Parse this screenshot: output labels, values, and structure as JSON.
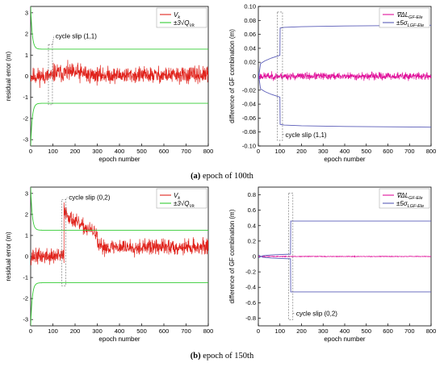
{
  "captions": [
    {
      "letter": "(a)",
      "text": " epoch of 100th"
    },
    {
      "letter": "(b)",
      "text": " epoch of 150th"
    }
  ],
  "colors": {
    "red": "#e0221b",
    "green": "#33cc33",
    "magenta": "#e0109a",
    "blue": "#5a5cb8",
    "dash": "#666666"
  },
  "chart_data": [
    {
      "id": "a_left",
      "type": "line",
      "xlabel": "epoch number",
      "ylabel": "residual error (m)",
      "xlim": [
        0,
        800
      ],
      "ylim": [
        -3.3,
        3.3
      ],
      "xticks": [
        0,
        100,
        200,
        300,
        400,
        500,
        600,
        700,
        800
      ],
      "yticks": [
        -3,
        -2,
        -1,
        0,
        1,
        2,
        3
      ],
      "legend": {
        "position": "top-right",
        "entries": [
          {
            "label": "V_k",
            "color": "#e0221b"
          },
          {
            "label": "±3√Q_Vk",
            "color": "#33cc33"
          }
        ]
      },
      "series": [
        {
          "name": "V_k",
          "kind": "noise",
          "color": "#e0221b",
          "seed": 11,
          "segments": [
            {
              "x0": 1,
              "x1": 100,
              "base": 0.0,
              "amp": 0.35
            },
            {
              "x0": 100,
              "x1": 250,
              "base": 0.15,
              "amp": 0.38
            },
            {
              "x0": 250,
              "x1": 800,
              "base": 0.05,
              "amp": 0.33
            }
          ]
        },
        {
          "name": "+3√Q_Vk",
          "kind": "envelope",
          "color": "#33cc33",
          "start": 3.3,
          "end": 1.28,
          "decay": 7
        },
        {
          "name": "-3√Q_Vk",
          "kind": "envelope",
          "color": "#33cc33",
          "start": -3.3,
          "end": -1.28,
          "decay": 7
        }
      ],
      "annotation": {
        "text": "cycle slip (1,1)",
        "box_x": [
          80,
          98
        ],
        "box_y": [
          -1.35,
          1.5
        ],
        "label_at": {
          "x": 112,
          "y": 1.8
        }
      }
    },
    {
      "id": "a_right",
      "type": "line",
      "xlabel": "epoch number",
      "ylabel": "difference of GF combination (m)",
      "xlim": [
        0,
        800
      ],
      "ylim": [
        -0.1,
        0.1
      ],
      "xticks": [
        0,
        100,
        200,
        300,
        400,
        500,
        600,
        700,
        800
      ],
      "yticks": [
        -0.1,
        -0.08,
        -0.06,
        -0.04,
        -0.02,
        0,
        0.02,
        0.04,
        0.06,
        0.08,
        0.1
      ],
      "legend": {
        "position": "top-right",
        "entries": [
          {
            "label": "∇ΔL_GF-Ele",
            "color": "#e0109a"
          },
          {
            "label": "±5σ_LGF-Ele",
            "color": "#5a5cb8"
          }
        ]
      },
      "series": [
        {
          "name": "∇ΔL_GF-Ele",
          "kind": "noise",
          "color": "#e0109a",
          "seed": 23,
          "segments": [
            {
              "x0": 1,
              "x1": 800,
              "base": 0.0,
              "amp": 0.0045
            }
          ]
        },
        {
          "name": "+5σ",
          "kind": "points",
          "color": "#5a5cb8",
          "x": [
            0,
            10,
            30,
            60,
            90,
            100,
            101,
            120,
            200,
            400,
            800
          ],
          "y": [
            -0.005,
            0.018,
            0.022,
            0.026,
            0.029,
            0.03,
            0.069,
            0.07,
            0.071,
            0.072,
            0.073
          ]
        },
        {
          "name": "-5σ",
          "kind": "points",
          "color": "#5a5cb8",
          "x": [
            0,
            10,
            30,
            60,
            90,
            100,
            101,
            120,
            200,
            400,
            800
          ],
          "y": [
            0.005,
            -0.018,
            -0.022,
            -0.026,
            -0.029,
            -0.03,
            -0.069,
            -0.07,
            -0.071,
            -0.072,
            -0.073
          ]
        }
      ],
      "annotation": {
        "text": "cycle slip (1,1)",
        "box_x": [
          88,
          112
        ],
        "box_y": [
          -0.092,
          0.092
        ],
        "label_at": {
          "x": 125,
          "y": -0.087
        }
      }
    },
    {
      "id": "b_left",
      "type": "line",
      "xlabel": "epoch number",
      "ylabel": "residual error (m)",
      "xlim": [
        0,
        800
      ],
      "ylim": [
        -3.3,
        3.3
      ],
      "xticks": [
        0,
        100,
        200,
        300,
        400,
        500,
        600,
        700,
        800
      ],
      "yticks": [
        -3,
        -2,
        -1,
        0,
        1,
        2,
        3
      ],
      "legend": {
        "position": "top-right",
        "entries": [
          {
            "label": "V_k",
            "color": "#e0221b"
          },
          {
            "label": "±3√Q_Vk",
            "color": "#33cc33"
          }
        ]
      },
      "series": [
        {
          "name": "V_k",
          "kind": "noise",
          "color": "#e0221b",
          "seed": 37,
          "segments": [
            {
              "x0": 1,
              "x1": 150,
              "base": 0.0,
              "amp": 0.32
            },
            {
              "x0": 150,
              "x1": 300,
              "base": 2.4,
              "end_base": 1.1,
              "amp": 0.3
            },
            {
              "x0": 300,
              "x1": 800,
              "base": 0.45,
              "amp": 0.32
            }
          ]
        },
        {
          "name": "+3√Q_Vk",
          "kind": "envelope",
          "color": "#33cc33",
          "start": 3.3,
          "end": 1.25,
          "decay": 7
        },
        {
          "name": "-3√Q_Vk",
          "kind": "envelope",
          "color": "#33cc33",
          "start": -3.3,
          "end": -1.25,
          "decay": 7
        }
      ],
      "annotation": {
        "text": "cycle slip (0,2)",
        "box_x": [
          140,
          158
        ],
        "box_y": [
          -1.4,
          2.7
        ],
        "label_at": {
          "x": 172,
          "y": 2.7
        }
      }
    },
    {
      "id": "b_right",
      "type": "line",
      "xlabel": "epoch number",
      "ylabel": "difference of GF combination (m)",
      "xlim": [
        0,
        800
      ],
      "ylim": [
        -0.9,
        0.9
      ],
      "xticks": [
        0,
        100,
        200,
        300,
        400,
        500,
        600,
        700,
        800
      ],
      "yticks": [
        -0.8,
        -0.6,
        -0.4,
        -0.2,
        0,
        0.2,
        0.4,
        0.6,
        0.8
      ],
      "legend": {
        "position": "top-right",
        "entries": [
          {
            "label": "∇ΔL_GF-Ele",
            "color": "#e0109a"
          },
          {
            "label": "±5σ_LGF-Ele",
            "color": "#5a5cb8"
          }
        ]
      },
      "series": [
        {
          "name": "∇ΔL_GF-Ele",
          "kind": "noise",
          "color": "#e0109a",
          "seed": 51,
          "segments": [
            {
              "x0": 1,
              "x1": 800,
              "base": 0.0,
              "amp": 0.004
            }
          ]
        },
        {
          "name": "+5σ",
          "kind": "points",
          "color": "#5a5cb8",
          "x": [
            0,
            20,
            60,
            100,
            149,
            150,
            800
          ],
          "y": [
            -0.02,
            0.01,
            0.02,
            0.025,
            0.03,
            0.46,
            0.46
          ]
        },
        {
          "name": "-5σ",
          "kind": "points",
          "color": "#5a5cb8",
          "x": [
            0,
            20,
            60,
            100,
            149,
            150,
            800
          ],
          "y": [
            0.02,
            -0.01,
            -0.02,
            -0.025,
            -0.03,
            -0.46,
            -0.46
          ]
        }
      ],
      "annotation": {
        "text": "cycle slip (0,2)",
        "box_x": [
          140,
          160
        ],
        "box_y": [
          -0.82,
          0.82
        ],
        "label_at": {
          "x": 175,
          "y": -0.77
        }
      }
    }
  ]
}
